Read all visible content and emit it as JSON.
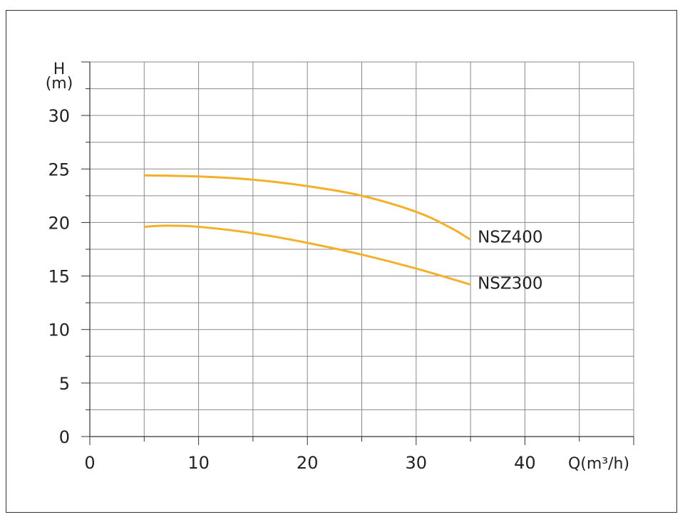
{
  "chart_data": {
    "type": "line",
    "title": "",
    "xlabel": "Q(m³/h)",
    "ylabel_top": "H",
    "ylabel_unit": "(m)",
    "xlim": [
      0,
      50
    ],
    "ylim": [
      0,
      35
    ],
    "x_ticks": [
      0,
      10,
      20,
      30,
      40
    ],
    "y_ticks": [
      0,
      5,
      10,
      15,
      20,
      25,
      30
    ],
    "x_tick_labels": [
      "0",
      "10",
      "20",
      "30",
      "40"
    ],
    "y_tick_labels": [
      "0",
      "5",
      "10",
      "15",
      "20",
      "25",
      "30"
    ],
    "grid": true,
    "line_color": "#f5b027",
    "series": [
      {
        "name": "NSZ400",
        "x": [
          5,
          10,
          15,
          20,
          25,
          30,
          33,
          35
        ],
        "y": [
          24.4,
          24.3,
          24.0,
          23.4,
          22.5,
          21.0,
          19.6,
          18.4
        ]
      },
      {
        "name": "NSZ300",
        "x": [
          5,
          7,
          10,
          15,
          20,
          25,
          30,
          35
        ],
        "y": [
          19.6,
          19.7,
          19.6,
          19.0,
          18.1,
          17.0,
          15.7,
          14.2
        ]
      }
    ]
  }
}
